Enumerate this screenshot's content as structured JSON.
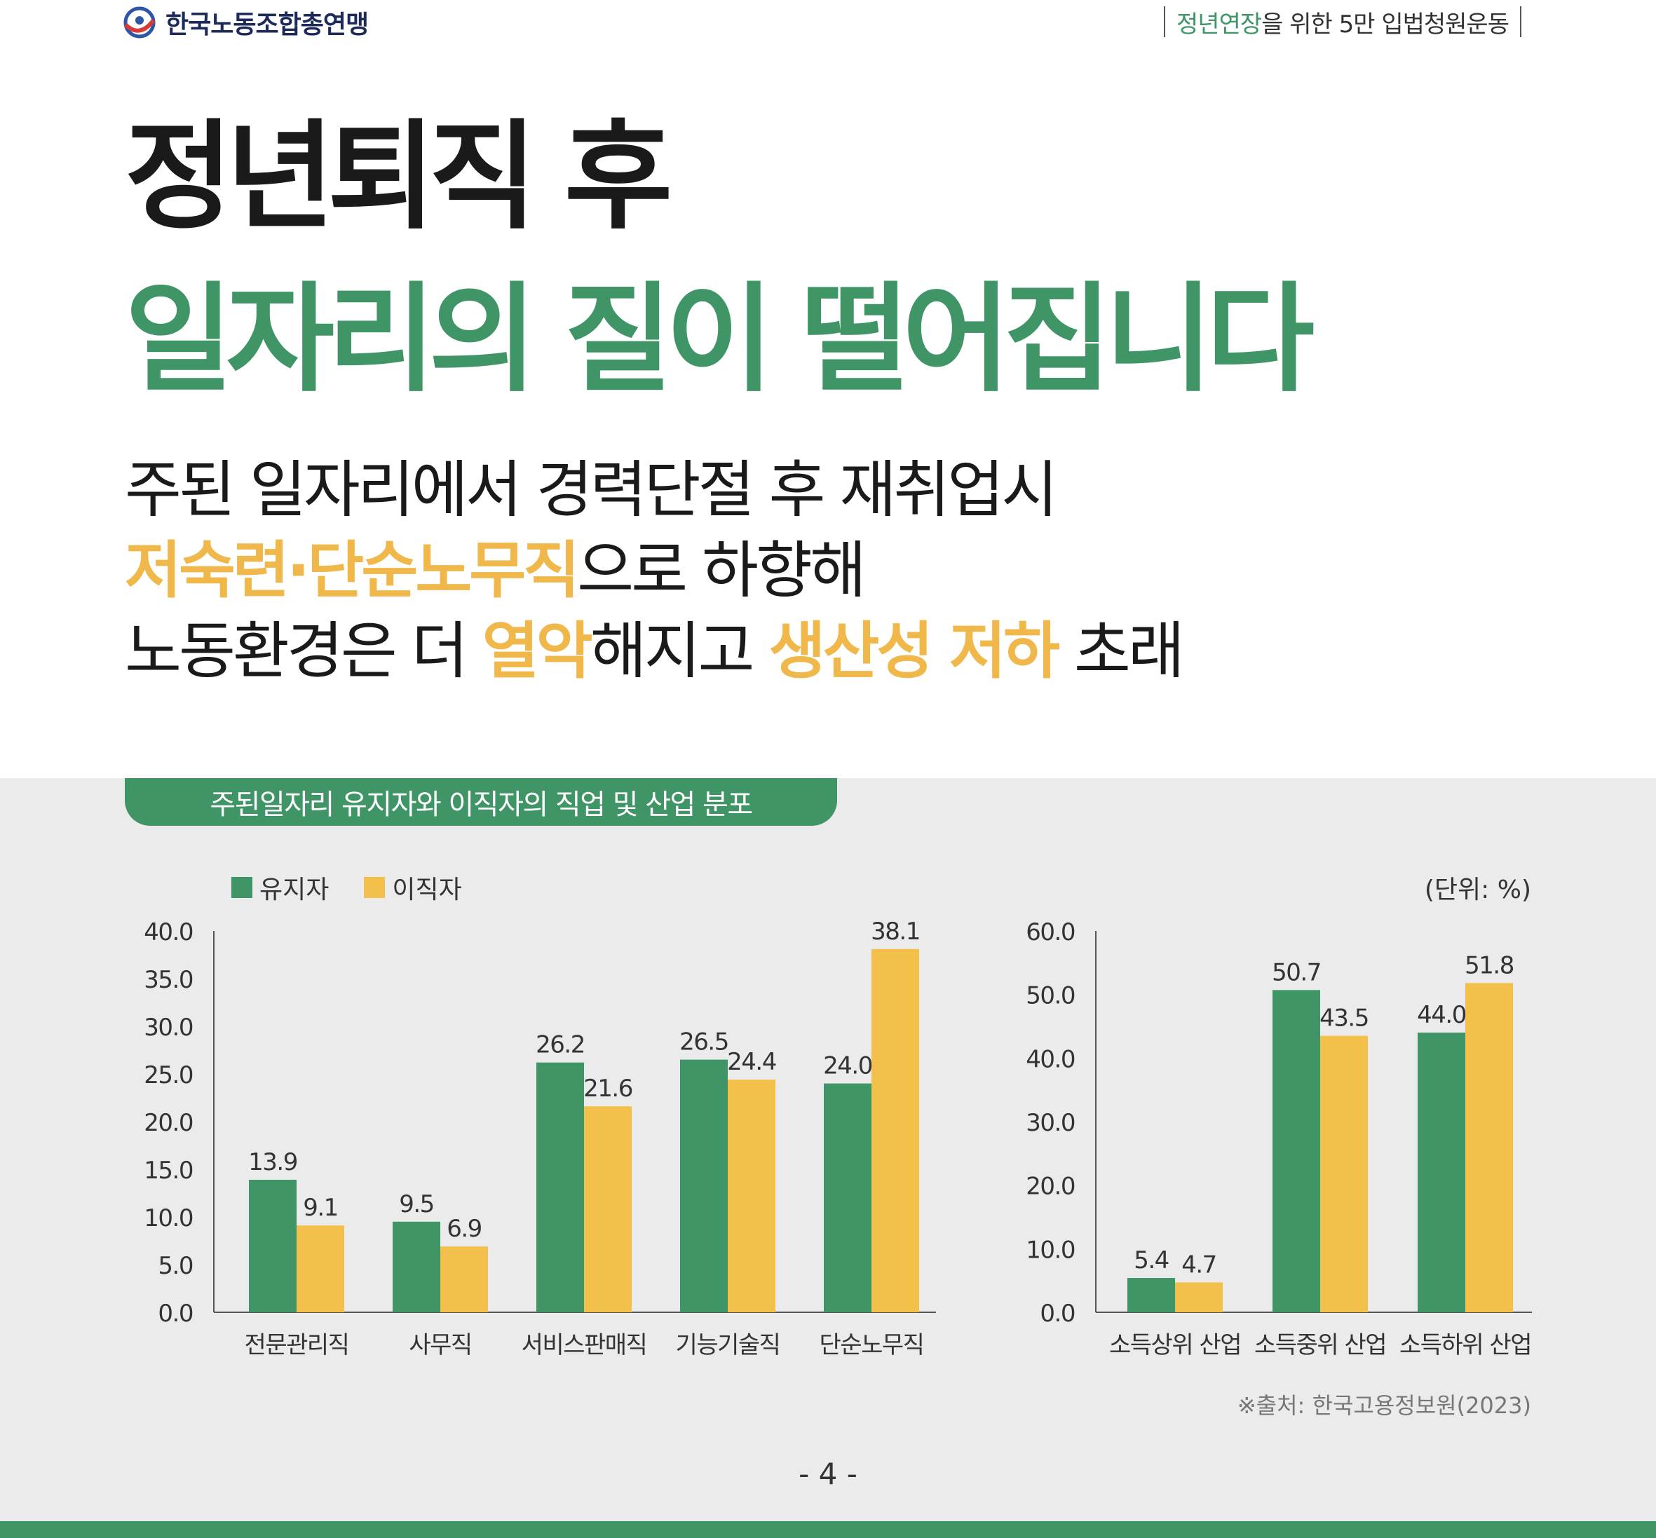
{
  "header": {
    "org_name": "한국노동조합총연맹",
    "campaign_highlight": "정년연장",
    "campaign_rest": "을 위한 5만 입법청원운동"
  },
  "title": {
    "line1": "정년퇴직 후",
    "line2": "일자리의 질이 떨어집니다"
  },
  "subtitle": {
    "line1": "주된 일자리에서 경력단절 후 재취업시",
    "line2_highlight": "저숙련·단순노무직",
    "line2_rest": "으로 하향해",
    "line3_a": "노동환경은 더 ",
    "line3_highlight1": "열악",
    "line3_b": "해지고 ",
    "line3_highlight2": "생산성 저하",
    "line3_c": " 초래"
  },
  "panel": {
    "tab_title": "주된일자리 유지자와 이직자의 직업 및 산업 분포",
    "unit": "(단위: %)",
    "source": "※출처: 한국고용정보원(2023)"
  },
  "colors": {
    "green": "#3f9566",
    "yellow": "#f4c04c",
    "panel_bg": "#ebebeb"
  },
  "chart_data": [
    {
      "type": "bar",
      "categories": [
        "전문관리직",
        "사무직",
        "서비스판매직",
        "기능기술직",
        "단순노무직"
      ],
      "series": [
        {
          "name": "유지자",
          "values": [
            13.9,
            9.5,
            26.2,
            26.5,
            24.0
          ],
          "labels": [
            "13.9",
            "9.5",
            "26.2",
            "26.5",
            "24.0"
          ]
        },
        {
          "name": "이직자",
          "values": [
            9.1,
            6.9,
            21.6,
            24.4,
            38.1
          ],
          "labels": [
            "9.1",
            "6.9",
            "21.6",
            "24.4",
            "38.1"
          ]
        }
      ],
      "ylim": [
        0,
        40
      ],
      "yticks": [
        "0.0",
        "5.0",
        "10.0",
        "15.0",
        "20.0",
        "25.0",
        "30.0",
        "35.0",
        "40.0"
      ],
      "legend": "top-left",
      "grid": false
    },
    {
      "type": "bar",
      "categories": [
        "소득상위 산업",
        "소득중위 산업",
        "소득하위 산업"
      ],
      "series": [
        {
          "name": "유지자",
          "values": [
            5.4,
            50.7,
            44.0
          ],
          "labels": [
            "5.4",
            "50.7",
            "44.0"
          ]
        },
        {
          "name": "이직자",
          "values": [
            4.7,
            43.5,
            51.8
          ],
          "labels": [
            "4.7",
            "43.5",
            "51.8"
          ]
        }
      ],
      "ylim": [
        0,
        60
      ],
      "yticks": [
        "0.0",
        "10.0",
        "20.0",
        "30.0",
        "40.0",
        "50.0",
        "60.0"
      ],
      "grid": false
    }
  ],
  "page": "- 4 -"
}
